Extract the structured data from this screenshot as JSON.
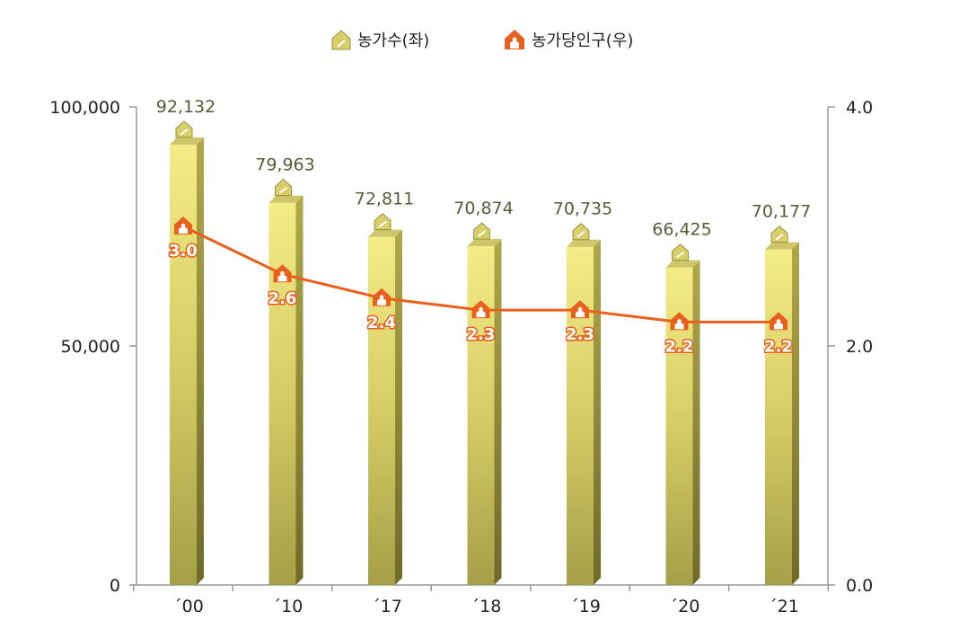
{
  "chart_data": {
    "type": "bar",
    "categories": [
      "´00",
      "´10",
      "´17",
      "´18",
      "´19",
      "´20",
      "´21"
    ],
    "series": [
      {
        "name": "농가수(좌)",
        "type": "bar",
        "axis": "left",
        "values": [
          92132,
          79963,
          72811,
          70874,
          70735,
          66425,
          70177
        ],
        "labels": [
          "92,132",
          "79,963",
          "72,811",
          "70,874",
          "70,735",
          "66,425",
          "70,177"
        ],
        "color": "#c9c25a"
      },
      {
        "name": "농가당인구(우)",
        "type": "line",
        "axis": "right",
        "values": [
          3.0,
          2.6,
          2.4,
          2.3,
          2.3,
          2.2,
          2.2
        ],
        "labels": [
          "3.0",
          "2.6",
          "2.4",
          "2.3",
          "2.3",
          "2.2",
          "2.2"
        ],
        "color": "#e8601c"
      }
    ],
    "y_left": {
      "range": [
        0,
        100000
      ],
      "ticks": [
        "0",
        "50,000",
        "100,000"
      ],
      "tick_values": [
        0,
        50000,
        100000
      ]
    },
    "y_right": {
      "range": [
        0.0,
        4.0
      ],
      "ticks": [
        "0.0",
        "2.0",
        "4.0"
      ],
      "tick_values": [
        0,
        2,
        4
      ]
    },
    "legend_position": "top-center",
    "grid": false
  }
}
